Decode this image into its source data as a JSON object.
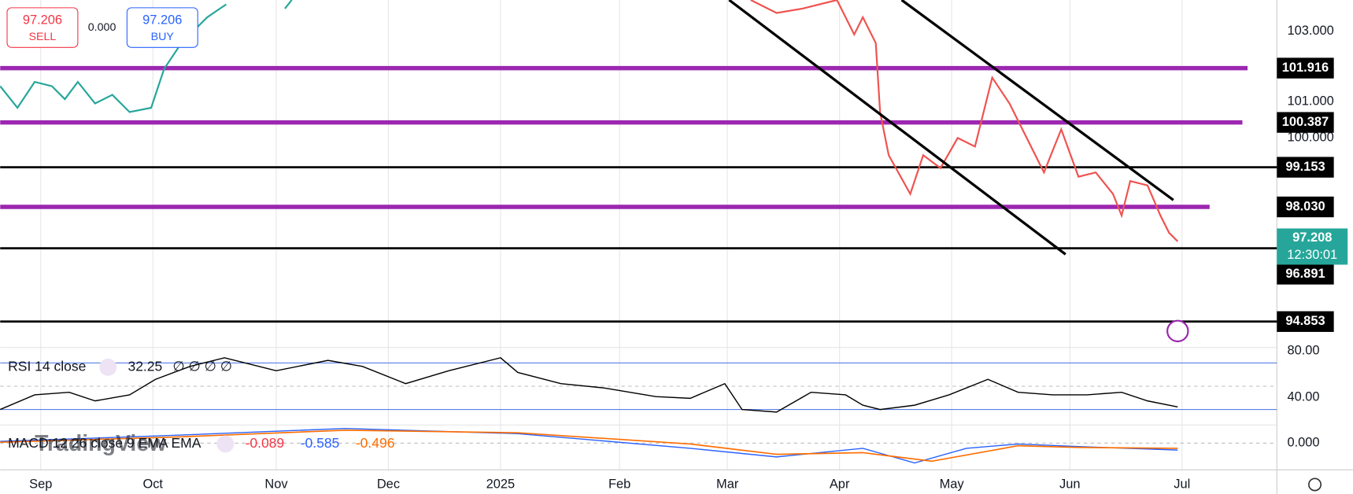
{
  "header": {
    "sell_price": "97.206",
    "sell_label": "SELL",
    "spread": "0.000",
    "buy_price": "97.206",
    "buy_label": "BUY"
  },
  "price_axis": {
    "labels": [
      "103.000",
      "101.000",
      "100.000"
    ],
    "levels": [
      "101.916",
      "100.387",
      "99.153",
      "98.030",
      "96.891",
      "94.853"
    ],
    "current_price": "97.208",
    "countdown": "12:30:01"
  },
  "rsi": {
    "title": "RSI 14 close",
    "value": "32.25",
    "extra": "∅ ∅ ∅ ∅",
    "axis": [
      "80.00",
      "40.00"
    ]
  },
  "macd": {
    "title": "MACD 12 26 close 9 EMA EMA",
    "values": [
      "-0.089",
      "-0.585",
      "-0.496"
    ],
    "axis": [
      "0.000"
    ]
  },
  "time_axis": [
    "Sep",
    "Oct",
    "Nov",
    "Dec",
    "2025",
    "Feb",
    "Mar",
    "Apr",
    "May",
    "Jun",
    "Jul"
  ],
  "watermark": "TradingView"
}
